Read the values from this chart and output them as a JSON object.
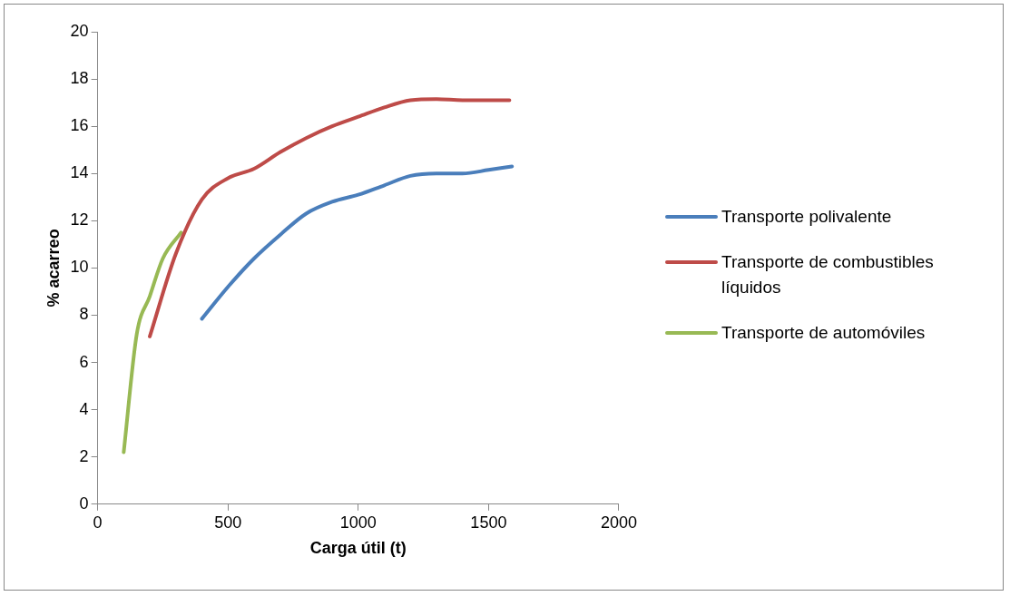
{
  "chart_data": {
    "type": "line",
    "xlabel": "Carga útil (t)",
    "ylabel": "% acarreo",
    "xlim": [
      0,
      2000
    ],
    "xticks": [
      0,
      500,
      1000,
      1500,
      2000
    ],
    "ylim": [
      0,
      20
    ],
    "yticks": [
      0,
      2,
      4,
      6,
      8,
      10,
      12,
      14,
      16,
      18,
      20
    ],
    "grid": false,
    "legend": "right",
    "marker": "none",
    "line_style": "solid",
    "series": [
      {
        "name": "Transporte polivalente",
        "color": "#4a7ebb",
        "x": [
          400,
          500,
          600,
          700,
          800,
          900,
          1000,
          1100,
          1200,
          1300,
          1400,
          1500,
          1590
        ],
        "values": [
          7.85,
          9.2,
          10.4,
          11.4,
          12.3,
          12.8,
          13.1,
          13.5,
          13.9,
          14.0,
          14.0,
          14.15,
          14.3
        ]
      },
      {
        "name": "Transporte de combustibles líquidos",
        "color": "#be4b48",
        "x": [
          200,
          300,
          400,
          500,
          600,
          700,
          800,
          900,
          1000,
          1100,
          1200,
          1300,
          1400,
          1580
        ],
        "values": [
          7.1,
          10.6,
          12.9,
          13.8,
          14.2,
          14.9,
          15.5,
          16.0,
          16.4,
          16.8,
          17.1,
          17.15,
          17.1,
          17.1
        ]
      },
      {
        "name": "Transporte de automóviles",
        "color": "#98b954",
        "x": [
          100,
          150,
          200,
          250,
          320
        ],
        "values": [
          2.2,
          7.2,
          8.8,
          10.4,
          11.5
        ]
      }
    ]
  }
}
